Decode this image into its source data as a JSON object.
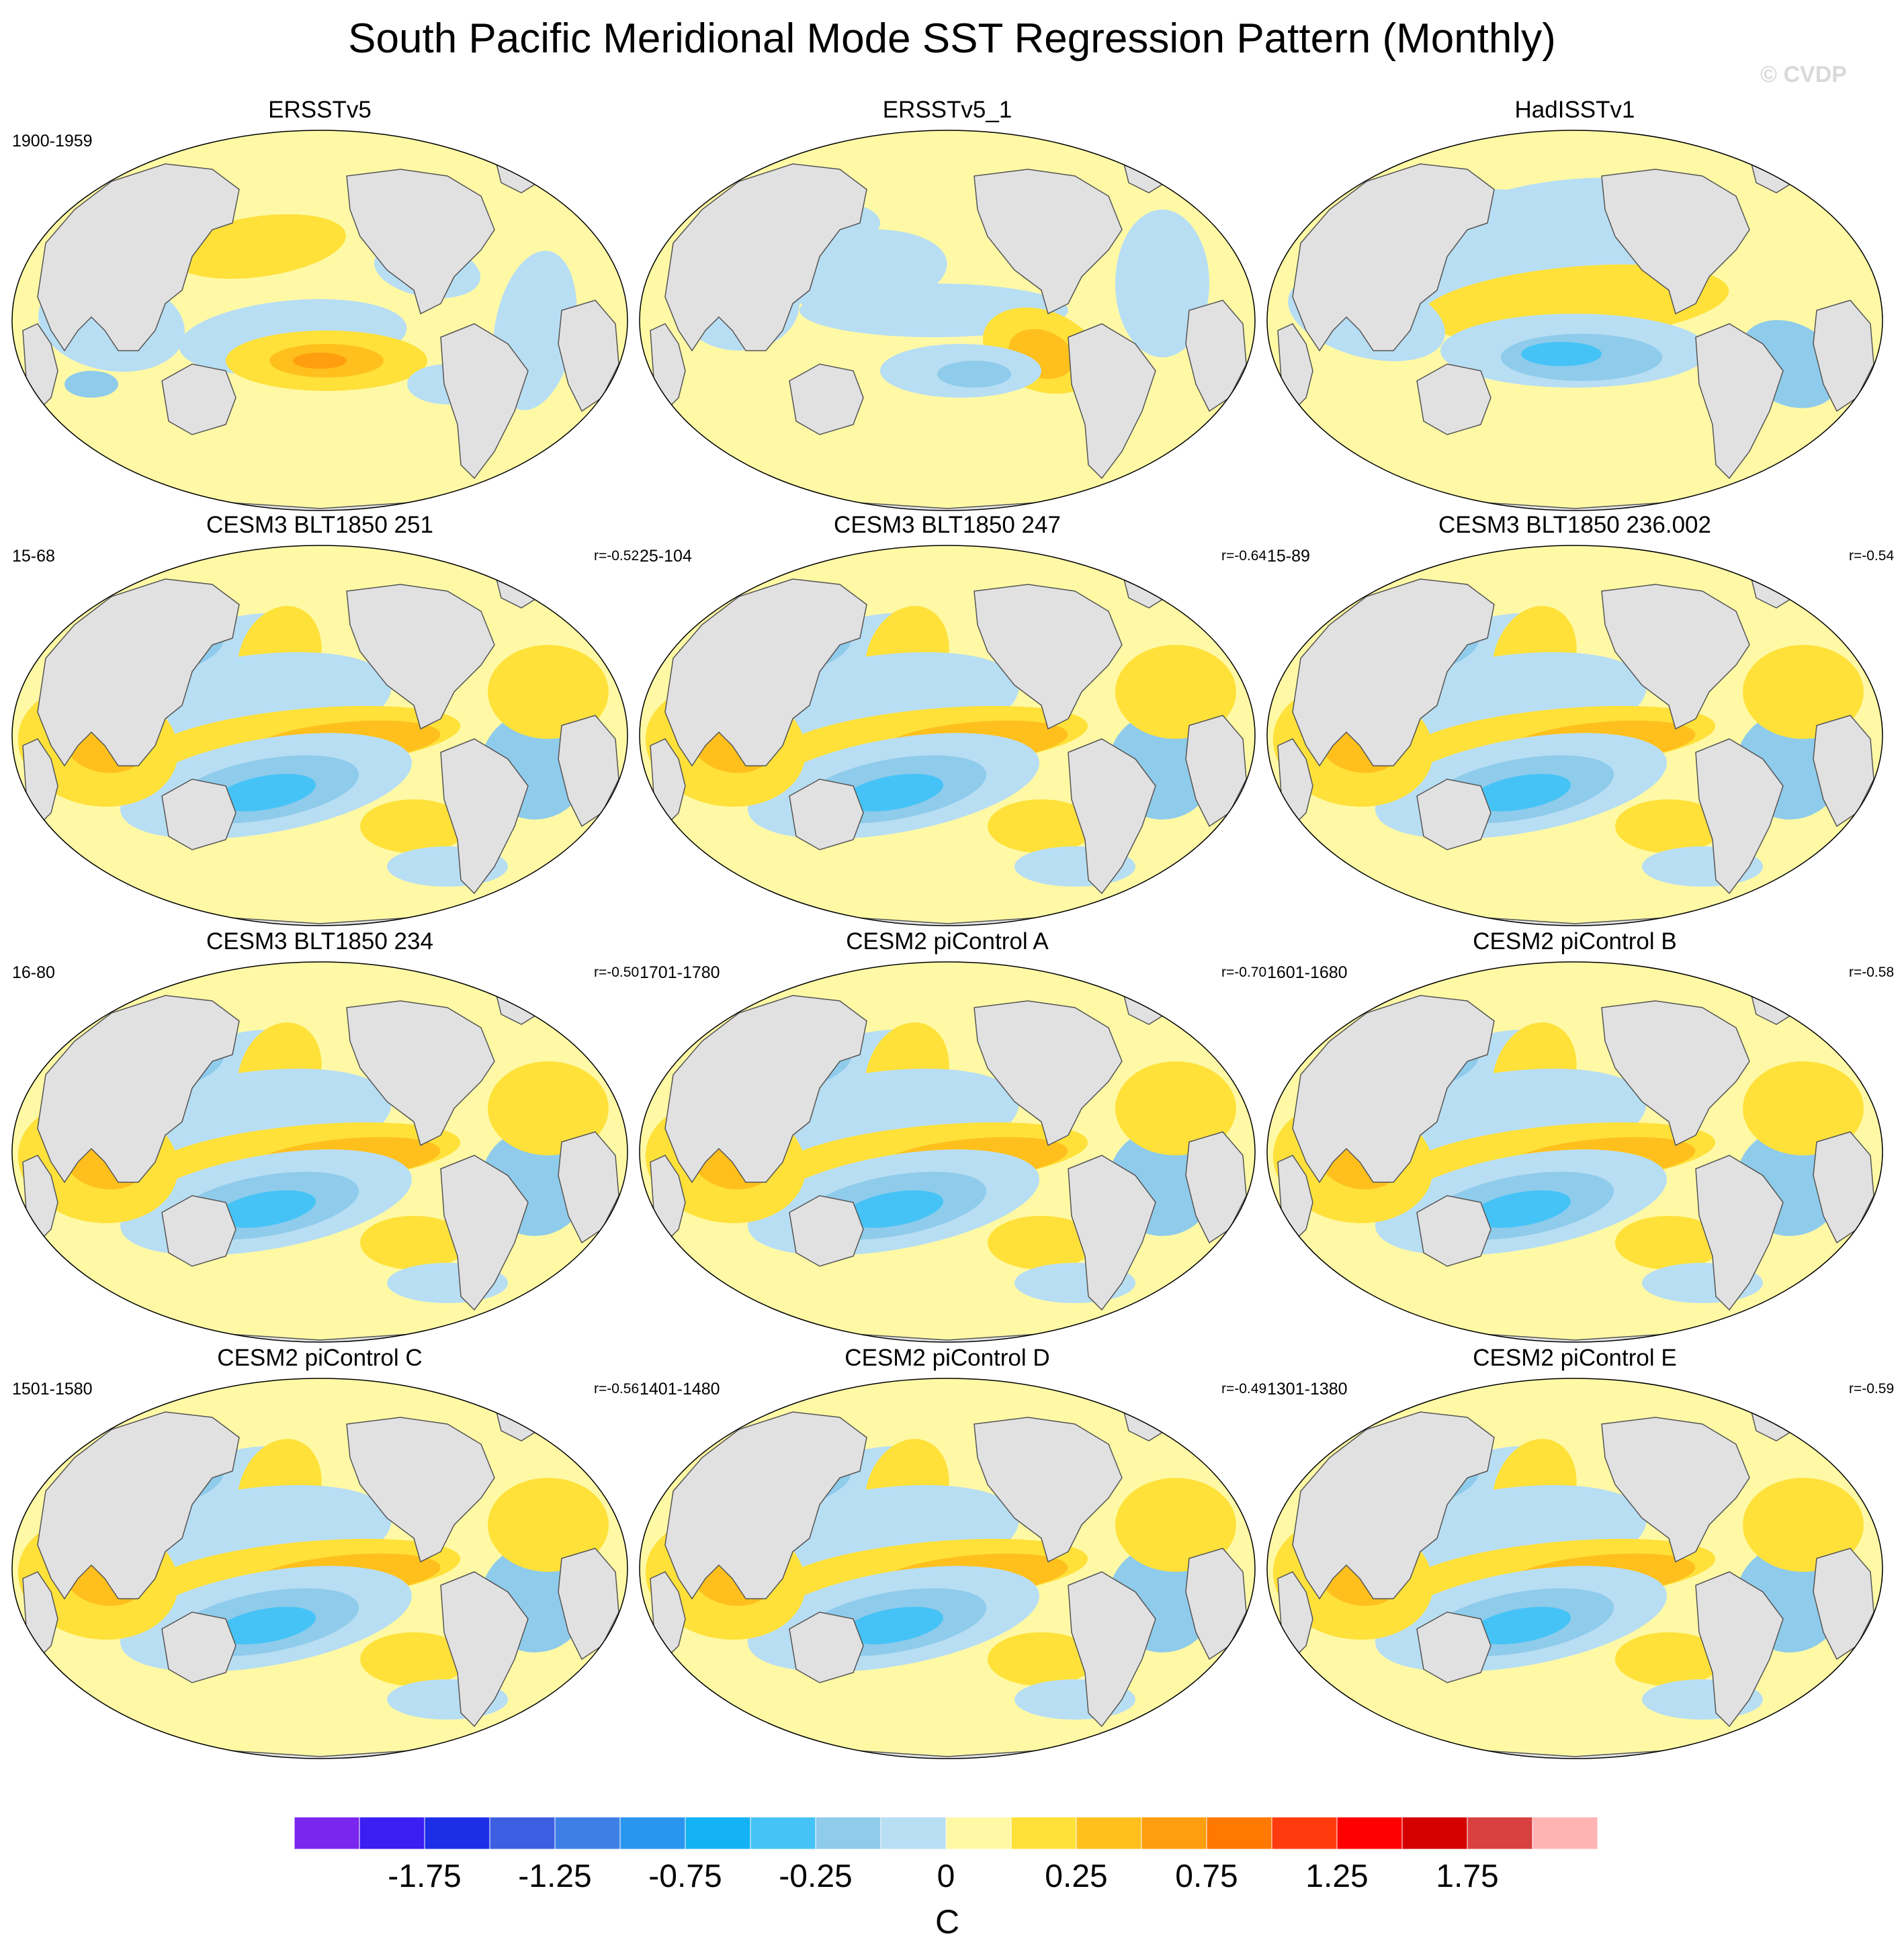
{
  "title": "South Pacific Meridional Mode SST Regression Pattern (Monthly)",
  "watermark": "© CVDP",
  "colors": {
    "land": "#e1e1e1",
    "coast": "#555555",
    "neutral_warm": "#fff9a6",
    "neutral_cool": "#b8def3"
  },
  "panels": [
    {
      "title": "ERSSTv5",
      "left_label": "1900-1959",
      "right_label": "",
      "pattern": "obs1"
    },
    {
      "title": "ERSSTv5_1",
      "left_label": "",
      "right_label": "",
      "pattern": "obs2"
    },
    {
      "title": "HadISSTv1",
      "left_label": "",
      "right_label": "",
      "pattern": "obs3"
    },
    {
      "title": "CESM3 BLT1850 251",
      "left_label": "15-68",
      "right_label": "r=-0.52",
      "pattern": "model"
    },
    {
      "title": "CESM3 BLT1850 247",
      "left_label": "25-104",
      "right_label": "r=-0.64",
      "pattern": "model"
    },
    {
      "title": "CESM3 BLT1850 236.002",
      "left_label": "15-89",
      "right_label": "r=-0.54",
      "pattern": "model"
    },
    {
      "title": "CESM3 BLT1850 234",
      "left_label": "16-80",
      "right_label": "r=-0.50",
      "pattern": "model"
    },
    {
      "title": "CESM2 piControl A",
      "left_label": "1701-1780",
      "right_label": "r=-0.70",
      "pattern": "model"
    },
    {
      "title": "CESM2 piControl B",
      "left_label": "1601-1680",
      "right_label": "r=-0.58",
      "pattern": "model"
    },
    {
      "title": "CESM2 piControl C",
      "left_label": "1501-1580",
      "right_label": "r=-0.56",
      "pattern": "model"
    },
    {
      "title": "CESM2 piControl D",
      "left_label": "1401-1480",
      "right_label": "r=-0.49",
      "pattern": "model"
    },
    {
      "title": "CESM2 piControl E",
      "left_label": "1301-1380",
      "right_label": "r=-0.59",
      "pattern": "model"
    }
  ],
  "colorbar": {
    "unit": "C",
    "colors": [
      "#7b26ef",
      "#3a1ef2",
      "#1d2fe6",
      "#3c5ee0",
      "#3e7fe6",
      "#2a95ef",
      "#12b2f4",
      "#45c3f6",
      "#8fcbeb",
      "#b8def3",
      "#fff9a6",
      "#ffe13a",
      "#ffc01d",
      "#ff9e0e",
      "#ff7800",
      "#ff3b0e",
      "#ff0000",
      "#d40000",
      "#d94040",
      "#ffb4b4"
    ],
    "tick_labels": [
      "-1.75",
      "-1.25",
      "-0.75",
      "-0.25",
      "0",
      "0.25",
      "0.75",
      "1.25",
      "1.75"
    ]
  }
}
